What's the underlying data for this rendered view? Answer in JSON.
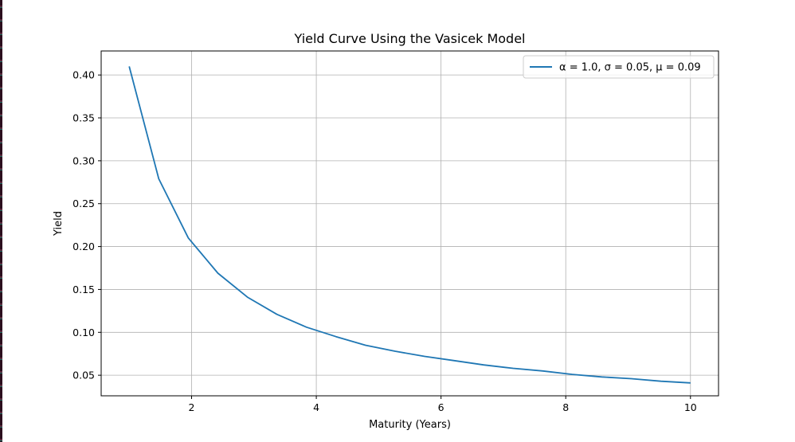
{
  "chart_data": {
    "type": "line",
    "title": "Yield Curve Using the Vasicek Model",
    "xlabel": "Maturity (Years)",
    "ylabel": "Yield",
    "xlim": [
      0.55,
      10.45
    ],
    "ylim": [
      0.026,
      0.428
    ],
    "xticks": [
      2,
      4,
      6,
      8,
      10
    ],
    "xtick_labels": [
      "2",
      "4",
      "6",
      "8",
      "10"
    ],
    "yticks": [
      0.05,
      0.1,
      0.15,
      0.2,
      0.25,
      0.3,
      0.35,
      0.4
    ],
    "ytick_labels": [
      "0.05",
      "0.10",
      "0.15",
      "0.20",
      "0.25",
      "0.30",
      "0.35",
      "0.40"
    ],
    "grid": true,
    "legend_position": "top-right",
    "series": [
      {
        "name": "α = 1.0, σ = 0.05, μ = 0.09",
        "color": "#1f77b4",
        "x": [
          1.0,
          1.474,
          1.947,
          2.421,
          2.895,
          3.368,
          3.842,
          4.316,
          4.789,
          5.263,
          5.737,
          6.211,
          6.684,
          7.158,
          7.632,
          8.105,
          8.579,
          9.053,
          9.526,
          10.0
        ],
        "y": [
          0.41,
          0.279,
          0.21,
          0.169,
          0.141,
          0.121,
          0.106,
          0.095,
          0.085,
          0.078,
          0.072,
          0.067,
          0.062,
          0.058,
          0.055,
          0.051,
          0.048,
          0.046,
          0.043,
          0.041
        ]
      }
    ]
  }
}
